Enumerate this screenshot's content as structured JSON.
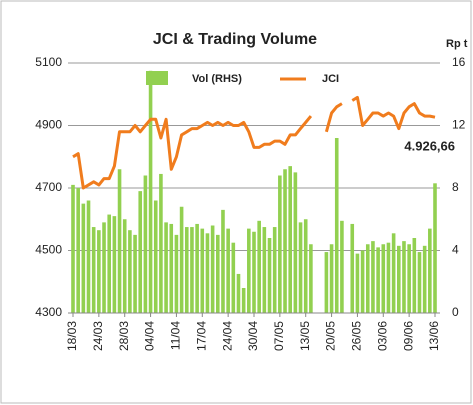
{
  "chart_data": {
    "type": "bar-line",
    "title": "JCI & Trading Volume",
    "y2_label": "Rp t",
    "annotation": "4.926,66",
    "categories": [
      "18/03",
      null,
      null,
      null,
      null,
      "24/03",
      null,
      null,
      null,
      null,
      "28/03",
      null,
      null,
      null,
      null,
      "04/04",
      null,
      null,
      null,
      null,
      "11/04",
      null,
      null,
      null,
      null,
      "17/04",
      null,
      null,
      null,
      null,
      "24/04",
      null,
      null,
      null,
      null,
      "30/04",
      null,
      null,
      null,
      null,
      "07/05",
      null,
      null,
      null,
      null,
      "13/05",
      null,
      null,
      null,
      null,
      "20/05",
      null,
      null,
      null,
      null,
      "26/05",
      null,
      null,
      null,
      null,
      "03/06",
      null,
      null,
      null,
      null,
      "09/06",
      null,
      null,
      null,
      null,
      "13/06"
    ],
    "series": [
      {
        "name": "Vol (RHS)",
        "type": "bar",
        "axis": "y2",
        "color": "#92d050",
        "values": [
          8.2,
          8,
          7,
          7.2,
          5.5,
          5.3,
          5.8,
          6.3,
          6.2,
          9.2,
          6,
          5.3,
          5,
          7.8,
          8.8,
          15.5,
          7.2,
          8.9,
          5.8,
          5.7,
          5,
          6.8,
          5.5,
          5.5,
          5.7,
          5.4,
          5.1,
          5.6,
          5,
          6.6,
          5.4,
          4.5,
          2.5,
          1.6,
          5.4,
          5.2,
          5.9,
          5.5,
          4.8,
          5.5,
          8.8,
          9.2,
          9.4,
          9,
          5.8,
          6,
          4.4,
          null,
          null,
          3.9,
          4.4,
          11.2,
          5.9,
          null,
          5.7,
          3.8,
          4,
          4.4,
          4.6,
          4.2,
          4.4,
          4.5,
          5.1,
          4.3,
          4.6,
          4.4,
          4.8,
          3.9,
          4.3,
          5.4,
          8.3
        ]
      },
      {
        "name": "JCI",
        "type": "line",
        "color": "#f07c1d",
        "values": [
          4800,
          4810,
          4700,
          4710,
          4720,
          4710,
          4730,
          4730,
          4770,
          4880,
          4880,
          4880,
          4900,
          4880,
          4900,
          4920,
          4920,
          4860,
          4920,
          4760,
          4800,
          4870,
          4880,
          4890,
          4890,
          4900,
          4910,
          4900,
          4910,
          4900,
          4910,
          4900,
          4900,
          4910,
          4880,
          4830,
          4830,
          4840,
          4840,
          4850,
          4850,
          4840,
          4870,
          4870,
          4890,
          4910,
          4930,
          null,
          null,
          4880,
          4940,
          4960,
          4970,
          null,
          4980,
          4990,
          4900,
          4920,
          4940,
          4940,
          4930,
          4940,
          4930,
          4890,
          4940,
          4960,
          4970,
          4940,
          4930,
          4930,
          4926.66
        ]
      }
    ],
    "ylim": [
      4300,
      5100
    ],
    "yticks": [
      4300,
      4500,
      4700,
      4900,
      5100
    ],
    "y2lim": [
      0,
      16
    ],
    "y2ticks": [
      0,
      4,
      8,
      12,
      16
    ],
    "grid": true
  }
}
